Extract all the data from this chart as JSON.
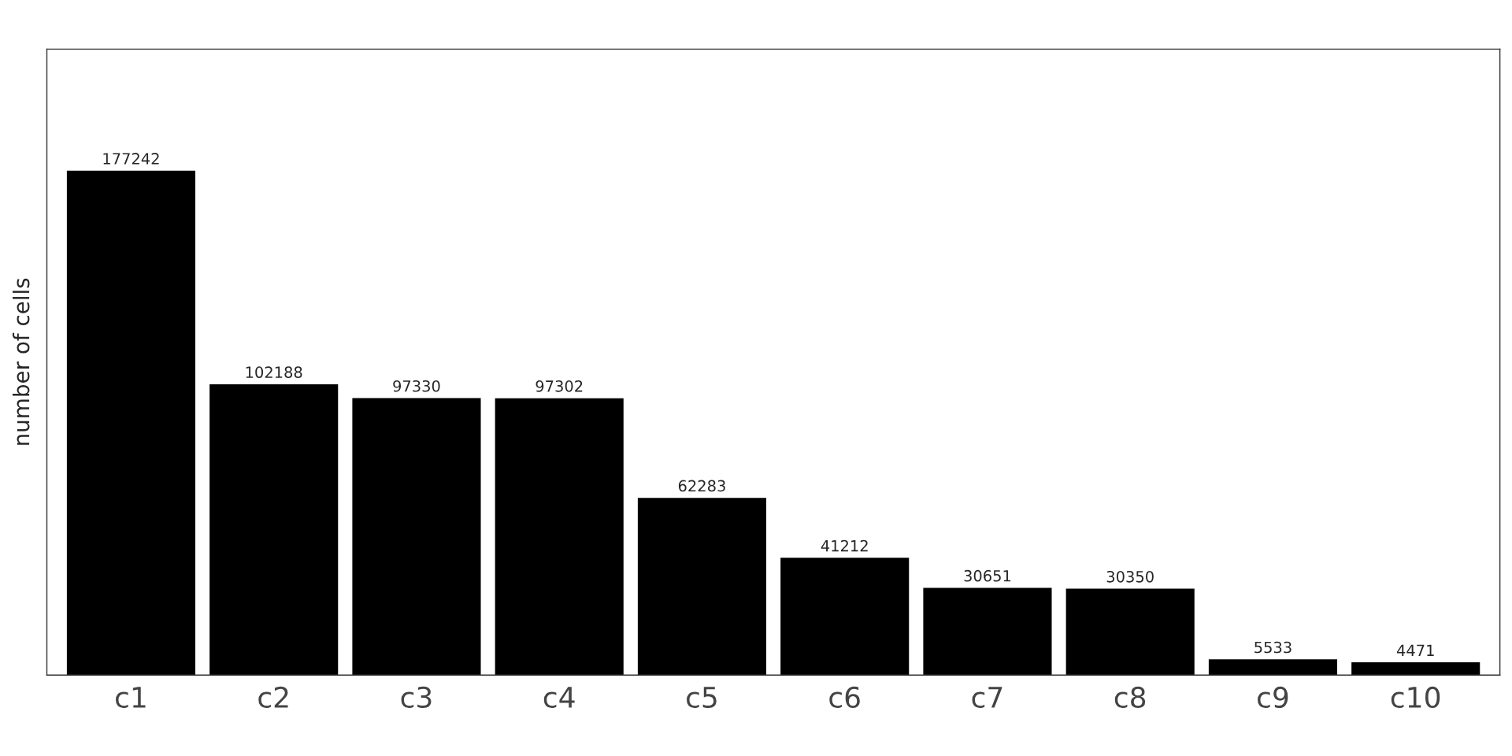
{
  "chart_data": {
    "type": "bar",
    "ylabel": "number of cells",
    "categories": [
      "c1",
      "c2",
      "c3",
      "c4",
      "c5",
      "c6",
      "c7",
      "c8",
      "c9",
      "c10"
    ],
    "values": [
      177242,
      102188,
      97330,
      97302,
      62283,
      41212,
      30651,
      30350,
      5533,
      4471
    ],
    "color": "#000000",
    "data_labels": true
  }
}
